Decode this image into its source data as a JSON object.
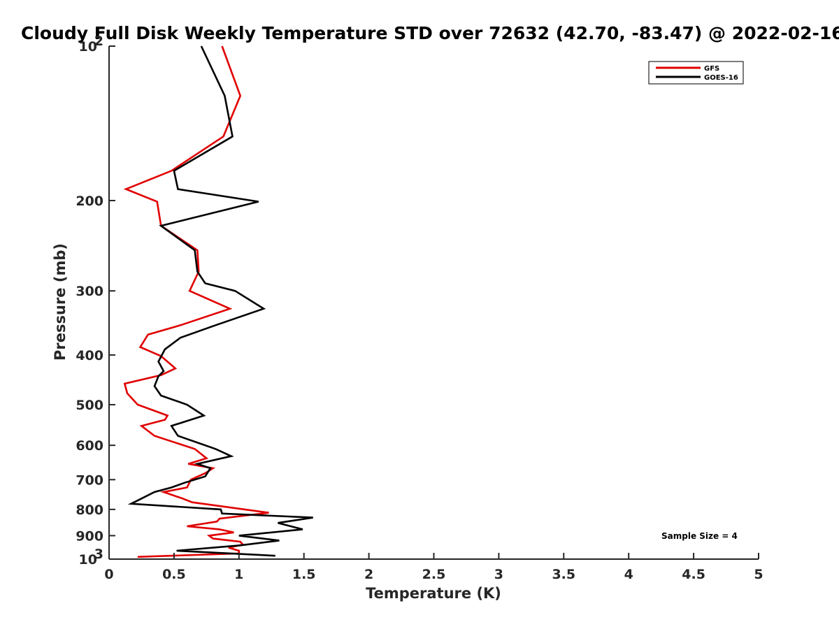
{
  "chart_data": {
    "type": "line",
    "title": "Cloudy Full Disk Weekly Temperature STD over 72632 (42.70, -83.47) @ 2022-02-16",
    "xlabel": "Temperature (K)",
    "ylabel": "Pressure (mb)",
    "xlim": [
      0,
      5
    ],
    "ylim": [
      1000,
      100
    ],
    "yscale": "log",
    "yreversed": true,
    "grid": false,
    "legend_position": "top-right",
    "x_ticks": [
      "0",
      "0.5",
      "1",
      "1.5",
      "2",
      "2.5",
      "3",
      "3.5",
      "4",
      "4.5",
      "5"
    ],
    "y_ticks": [
      {
        "value": 100,
        "label": "10",
        "exp": "2"
      },
      {
        "value": 200,
        "label": "200"
      },
      {
        "value": 300,
        "label": "300"
      },
      {
        "value": 400,
        "label": "400"
      },
      {
        "value": 500,
        "label": "500"
      },
      {
        "value": 600,
        "label": "600"
      },
      {
        "value": 700,
        "label": "700"
      },
      {
        "value": 800,
        "label": "800"
      },
      {
        "value": 900,
        "label": "900"
      },
      {
        "value": 1000,
        "label": "10",
        "exp": "3"
      }
    ],
    "annotation": "Sample Size = 4",
    "series": [
      {
        "name": "GFS",
        "color": "#e00000",
        "points": [
          [
            0.87,
            100
          ],
          [
            1.01,
            125
          ],
          [
            0.88,
            150
          ],
          [
            0.48,
            175
          ],
          [
            0.13,
            190
          ],
          [
            0.37,
            201
          ],
          [
            0.4,
            224
          ],
          [
            0.68,
            250
          ],
          [
            0.69,
            275
          ],
          [
            0.62,
            300
          ],
          [
            0.93,
            325
          ],
          [
            0.55,
            350
          ],
          [
            0.3,
            365
          ],
          [
            0.24,
            386
          ],
          [
            0.4,
            402
          ],
          [
            0.51,
            425
          ],
          [
            0.4,
            438
          ],
          [
            0.12,
            455
          ],
          [
            0.14,
            475
          ],
          [
            0.22,
            500
          ],
          [
            0.45,
            525
          ],
          [
            0.43,
            535
          ],
          [
            0.25,
            550
          ],
          [
            0.35,
            575
          ],
          [
            0.66,
            610
          ],
          [
            0.75,
            636
          ],
          [
            0.61,
            652
          ],
          [
            0.8,
            665
          ],
          [
            0.74,
            680
          ],
          [
            0.63,
            700
          ],
          [
            0.6,
            725
          ],
          [
            0.42,
            740
          ],
          [
            0.56,
            761
          ],
          [
            0.64,
            775
          ],
          [
            1.23,
            812
          ],
          [
            0.85,
            834
          ],
          [
            0.83,
            845
          ],
          [
            0.6,
            863
          ],
          [
            0.85,
            875
          ],
          [
            0.96,
            887
          ],
          [
            0.77,
            900
          ],
          [
            0.8,
            912
          ],
          [
            1.01,
            925
          ],
          [
            1.03,
            937
          ],
          [
            0.92,
            950
          ],
          [
            1.0,
            963
          ],
          [
            1.0,
            975
          ],
          [
            0.22,
            990
          ]
        ]
      },
      {
        "name": "GOES-16",
        "color": "#000000",
        "points": [
          [
            0.71,
            100
          ],
          [
            0.89,
            125
          ],
          [
            0.95,
            150
          ],
          [
            0.5,
            175
          ],
          [
            0.53,
            190
          ],
          [
            1.15,
            201
          ],
          [
            0.4,
            224
          ],
          [
            0.66,
            250
          ],
          [
            0.68,
            275
          ],
          [
            0.74,
            290
          ],
          [
            0.97,
            300
          ],
          [
            1.19,
            325
          ],
          [
            0.82,
            350
          ],
          [
            0.55,
            370
          ],
          [
            0.43,
            390
          ],
          [
            0.38,
            412
          ],
          [
            0.42,
            430
          ],
          [
            0.38,
            440
          ],
          [
            0.35,
            460
          ],
          [
            0.4,
            480
          ],
          [
            0.6,
            500
          ],
          [
            0.73,
            525
          ],
          [
            0.48,
            550
          ],
          [
            0.53,
            575
          ],
          [
            0.82,
            610
          ],
          [
            0.94,
            630
          ],
          [
            0.68,
            652
          ],
          [
            0.78,
            665
          ],
          [
            0.74,
            690
          ],
          [
            0.58,
            710
          ],
          [
            0.48,
            725
          ],
          [
            0.35,
            740
          ],
          [
            0.17,
            780
          ],
          [
            0.86,
            800
          ],
          [
            0.87,
            815
          ],
          [
            1.57,
            830
          ],
          [
            1.3,
            850
          ],
          [
            1.49,
            875
          ],
          [
            1.0,
            900
          ],
          [
            1.31,
            920
          ],
          [
            1.01,
            940
          ],
          [
            0.52,
            963
          ],
          [
            1.28,
            985
          ]
        ]
      }
    ]
  }
}
